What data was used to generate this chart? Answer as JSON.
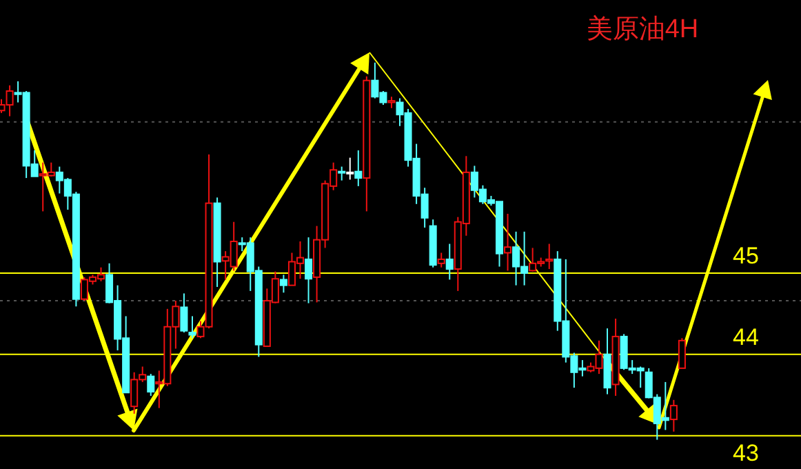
{
  "chart_data": {
    "type": "candlestick",
    "title": "美原油4H",
    "categories": [
      null,
      null,
      null,
      null,
      null,
      null,
      null,
      null,
      null,
      null,
      null,
      null,
      null,
      null,
      null,
      null,
      null,
      null,
      null,
      null,
      null,
      null,
      null,
      null,
      null,
      null,
      null,
      null,
      null,
      null,
      null,
      null,
      null,
      null,
      null,
      null,
      null,
      null,
      null,
      null,
      null,
      null,
      null,
      null,
      null,
      null,
      null,
      null,
      null,
      null,
      null,
      null,
      null,
      null,
      null,
      null,
      null,
      null,
      null,
      null,
      null,
      null,
      null,
      null,
      null,
      null,
      null,
      null,
      null,
      null,
      null,
      null,
      null,
      null,
      null,
      null,
      null,
      null,
      null,
      null,
      null,
      null,
      null,
      null,
      null,
      null,
      null,
      null,
      null,
      null,
      null,
      null,
      null,
      null,
      null,
      null,
      null
    ],
    "ohlc": [
      [
        47.0,
        47.14,
        46.97,
        47.07
      ],
      [
        47.07,
        47.31,
        46.93,
        47.24
      ],
      [
        47.22,
        47.36,
        47.1,
        47.2
      ],
      [
        47.22,
        47.24,
        46.17,
        46.32
      ],
      [
        46.34,
        46.51,
        46.19,
        46.19
      ],
      [
        46.2,
        46.36,
        45.76,
        46.22
      ],
      [
        46.2,
        46.36,
        46.19,
        46.24
      ],
      [
        46.24,
        46.31,
        45.98,
        46.14
      ],
      [
        46.15,
        46.17,
        45.78,
        45.95
      ],
      [
        45.97,
        46.0,
        44.59,
        44.68
      ],
      [
        44.68,
        44.95,
        44.66,
        44.92
      ],
      [
        44.9,
        44.98,
        44.86,
        44.95
      ],
      [
        44.93,
        45.07,
        44.9,
        44.98
      ],
      [
        44.98,
        45.12,
        44.63,
        44.64
      ],
      [
        44.66,
        44.85,
        44.05,
        44.19
      ],
      [
        44.2,
        44.47,
        43.53,
        43.53
      ],
      [
        43.36,
        43.78,
        43.27,
        43.69
      ],
      [
        43.69,
        43.85,
        43.66,
        43.75
      ],
      [
        43.73,
        43.76,
        43.49,
        43.54
      ],
      [
        43.64,
        43.8,
        43.34,
        43.66
      ],
      [
        43.64,
        44.56,
        43.61,
        44.34
      ],
      [
        44.34,
        44.66,
        44.07,
        44.59
      ],
      [
        44.58,
        44.75,
        44.27,
        44.29
      ],
      [
        44.27,
        44.47,
        44.2,
        44.24
      ],
      [
        44.22,
        44.41,
        44.2,
        44.34
      ],
      [
        44.34,
        46.46,
        44.32,
        45.86
      ],
      [
        45.86,
        45.93,
        44.83,
        45.14
      ],
      [
        45.15,
        45.27,
        44.92,
        45.2
      ],
      [
        45.08,
        45.63,
        45.03,
        45.39
      ],
      [
        45.37,
        45.44,
        45.27,
        45.36
      ],
      [
        45.37,
        45.44,
        44.78,
        45.02
      ],
      [
        45.03,
        45.08,
        43.97,
        44.12
      ],
      [
        44.1,
        44.81,
        44.1,
        44.66
      ],
      [
        44.64,
        45.02,
        44.63,
        44.93
      ],
      [
        44.92,
        44.98,
        44.76,
        44.85
      ],
      [
        44.85,
        45.25,
        44.85,
        45.14
      ],
      [
        45.12,
        45.39,
        44.93,
        45.19
      ],
      [
        45.17,
        45.44,
        44.63,
        44.93
      ],
      [
        44.95,
        45.58,
        44.64,
        45.41
      ],
      [
        45.41,
        46.14,
        45.31,
        46.1
      ],
      [
        46.07,
        46.36,
        46.02,
        46.27
      ],
      [
        46.25,
        46.31,
        46.14,
        46.24
      ],
      [
        46.24,
        46.42,
        46.15,
        46.24
      ],
      [
        46.25,
        46.51,
        46.07,
        46.17
      ],
      [
        46.17,
        47.42,
        45.76,
        47.37
      ],
      [
        47.37,
        47.59,
        47.15,
        47.17
      ],
      [
        47.22,
        47.24,
        47.07,
        47.1
      ],
      [
        47.1,
        47.17,
        47.03,
        47.12
      ],
      [
        47.1,
        47.15,
        46.81,
        46.95
      ],
      [
        46.97,
        47.02,
        46.31,
        46.39
      ],
      [
        46.41,
        46.59,
        45.85,
        45.95
      ],
      [
        45.97,
        46.05,
        45.56,
        45.68
      ],
      [
        45.58,
        45.66,
        45.07,
        45.1
      ],
      [
        45.12,
        45.25,
        45.07,
        45.17
      ],
      [
        45.17,
        45.36,
        44.92,
        45.05
      ],
      [
        45.05,
        45.69,
        44.78,
        45.63
      ],
      [
        45.61,
        46.44,
        45.46,
        46.24
      ],
      [
        46.24,
        46.32,
        45.93,
        46.02
      ],
      [
        46.03,
        46.08,
        45.85,
        45.88
      ],
      [
        45.9,
        45.95,
        45.83,
        45.86
      ],
      [
        45.88,
        45.88,
        45.08,
        45.24
      ],
      [
        45.25,
        45.73,
        45.03,
        45.32
      ],
      [
        45.32,
        45.51,
        44.85,
        45.08
      ],
      [
        45.08,
        45.51,
        44.85,
        45.0
      ],
      [
        45.03,
        45.31,
        45.02,
        45.12
      ],
      [
        45.12,
        45.19,
        45.08,
        45.14
      ],
      [
        45.15,
        45.36,
        45.05,
        45.17
      ],
      [
        45.17,
        45.27,
        44.29,
        44.41
      ],
      [
        44.41,
        45.17,
        43.9,
        43.97
      ],
      [
        43.98,
        44.02,
        43.59,
        43.78
      ],
      [
        43.83,
        43.93,
        43.73,
        43.81
      ],
      [
        43.8,
        43.9,
        43.78,
        43.85
      ],
      [
        43.83,
        44.17,
        43.76,
        44.0
      ],
      [
        44.0,
        44.32,
        43.51,
        43.59
      ],
      [
        43.63,
        44.44,
        43.49,
        44.22
      ],
      [
        44.22,
        44.25,
        43.81,
        43.83
      ],
      [
        43.83,
        43.93,
        43.76,
        43.81
      ],
      [
        43.83,
        43.85,
        43.59,
        43.8
      ],
      [
        43.78,
        43.83,
        43.46,
        43.47
      ],
      [
        43.47,
        43.51,
        42.95,
        43.15
      ],
      [
        43.22,
        43.66,
        43.07,
        43.19
      ],
      [
        43.2,
        43.44,
        43.05,
        43.37
      ],
      [
        43.83,
        44.2,
        43.83,
        44.17
      ],
      null,
      null,
      null,
      null,
      null,
      null,
      null,
      null,
      null,
      null,
      null,
      null,
      null,
      null
    ],
    "ylim": [
      42.59,
      48.36
    ],
    "tick_labels": false,
    "ref_lines": [
      {
        "axis": "y",
        "value": 45,
        "label": "45",
        "color": "#ffff00"
      },
      {
        "axis": "y",
        "value": 44,
        "label": "44",
        "color": "#ffff00"
      },
      {
        "axis": "y",
        "value": 43,
        "label": "43",
        "color": "#ffff00"
      },
      {
        "axis": "y",
        "value": 46.86,
        "color": "#555555",
        "line_style": "dotted"
      },
      {
        "axis": "y",
        "value": 44.66,
        "color": "#555555",
        "line_style": "dotted"
      }
    ]
  }
}
